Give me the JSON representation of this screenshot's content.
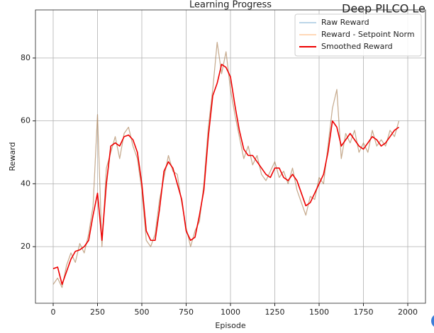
{
  "chart_data": {
    "type": "line",
    "title": "Learning Progress",
    "suptitle": "Deep PILCO Le",
    "xlabel": "Episode",
    "ylabel": "Reward",
    "x": [
      0,
      25,
      50,
      75,
      100,
      125,
      150,
      175,
      200,
      225,
      250,
      275,
      300,
      325,
      350,
      375,
      400,
      425,
      450,
      475,
      500,
      525,
      550,
      575,
      600,
      625,
      650,
      675,
      700,
      725,
      750,
      775,
      800,
      825,
      850,
      875,
      900,
      925,
      950,
      975,
      1000,
      1025,
      1050,
      1075,
      1100,
      1125,
      1150,
      1175,
      1200,
      1225,
      1250,
      1275,
      1300,
      1325,
      1350,
      1375,
      1400,
      1425,
      1450,
      1475,
      1500,
      1525,
      1550,
      1575,
      1600,
      1625,
      1650,
      1675,
      1700,
      1725,
      1750,
      1775,
      1800,
      1825,
      1850,
      1875,
      1900,
      1925,
      1950
    ],
    "series": [
      {
        "name": "Raw Reward",
        "color": "#1f77b4",
        "opacity": 0.4,
        "width": 1.2,
        "values": [
          8,
          10,
          7,
          14,
          18,
          15,
          21,
          18,
          24,
          33,
          62,
          20,
          45,
          50,
          55,
          48,
          56,
          58,
          52,
          48,
          38,
          22,
          20,
          24,
          35,
          42,
          49,
          44,
          43,
          34,
          26,
          20,
          25,
          28,
          40,
          58,
          70,
          85,
          75,
          82,
          70,
          62,
          55,
          48,
          52,
          46,
          49,
          43,
          41,
          44,
          47,
          42,
          44,
          40,
          45,
          38,
          34,
          30,
          36,
          35,
          42,
          40,
          52,
          64,
          70,
          48,
          56,
          53,
          57,
          50,
          53,
          50,
          57,
          52,
          54,
          52,
          57,
          55,
          60
        ]
      },
      {
        "name": "Reward - Setpoint Norm",
        "color": "#ff7f0e",
        "opacity": 0.4,
        "width": 1.2,
        "values": [
          8,
          10,
          7,
          14,
          18,
          15,
          21,
          18,
          24,
          33,
          62,
          20,
          45,
          50,
          55,
          48,
          56,
          58,
          52,
          48,
          38,
          22,
          20,
          24,
          35,
          42,
          49,
          44,
          43,
          34,
          26,
          20,
          25,
          28,
          40,
          58,
          70,
          85,
          75,
          82,
          70,
          62,
          55,
          48,
          52,
          46,
          49,
          43,
          41,
          44,
          47,
          42,
          44,
          40,
          45,
          38,
          34,
          30,
          36,
          35,
          42,
          40,
          52,
          64,
          70,
          48,
          56,
          53,
          57,
          50,
          53,
          50,
          57,
          52,
          54,
          52,
          57,
          55,
          60
        ]
      },
      {
        "name": "Smoothed Reward",
        "color": "#ee0000",
        "opacity": 1,
        "width": 1.6,
        "values": [
          13,
          13.5,
          8,
          12,
          16,
          18.5,
          19,
          20,
          22,
          30,
          37,
          22,
          40,
          52,
          53,
          52,
          55,
          55.5,
          54,
          50,
          40,
          25,
          22,
          22,
          32,
          44,
          47,
          45,
          40,
          35,
          25,
          22,
          23,
          30,
          38,
          55,
          68,
          72,
          78,
          77,
          74,
          65,
          57,
          51,
          49,
          49,
          47,
          45,
          43,
          42,
          45,
          45,
          42,
          41,
          43,
          41,
          37,
          33,
          34,
          37,
          40,
          43,
          50,
          60,
          58,
          52,
          54,
          56,
          54,
          52,
          51,
          53,
          55,
          54,
          52,
          53,
          55,
          57,
          58
        ]
      }
    ],
    "xlim": [
      -100,
      2100
    ],
    "xticks": [
      0,
      250,
      500,
      750,
      1000,
      1250,
      1500,
      1750,
      2000
    ],
    "ylim": [
      2,
      95.3
    ],
    "yticks": [
      20,
      40,
      60,
      80
    ],
    "grid": true,
    "legend": "upper right"
  }
}
